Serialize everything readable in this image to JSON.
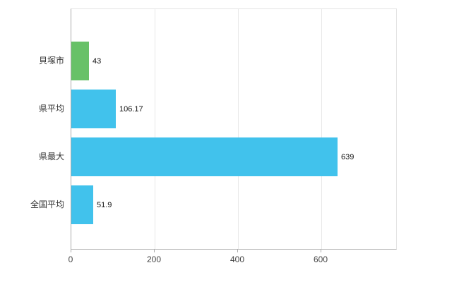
{
  "chart_data": {
    "type": "bar",
    "orientation": "horizontal",
    "title": "",
    "categories": [
      "貝塚市",
      "県平均",
      "県最大",
      "全国平均"
    ],
    "values": [
      43,
      106.17,
      639,
      51.9
    ],
    "value_labels": [
      "43",
      "106.17",
      "639",
      "51.9"
    ],
    "series_colors": [
      "#68c168",
      "#41c2ec",
      "#41c2ec",
      "#41c2ec"
    ],
    "x_axis": {
      "min": 0,
      "max": 780,
      "ticks": [
        0,
        200,
        400,
        600
      ],
      "tick_labels": [
        "0",
        "200",
        "400",
        "600"
      ]
    },
    "y_axis_label": "",
    "x_axis_label": "",
    "legend": "none",
    "grid": "vertical",
    "colors": {
      "bar_green": "#68c168",
      "bar_blue": "#41c2ec",
      "axis": "#ababab",
      "gridline": "#e8e8e8",
      "label_text": "#333333",
      "background": "#ffffff"
    }
  }
}
